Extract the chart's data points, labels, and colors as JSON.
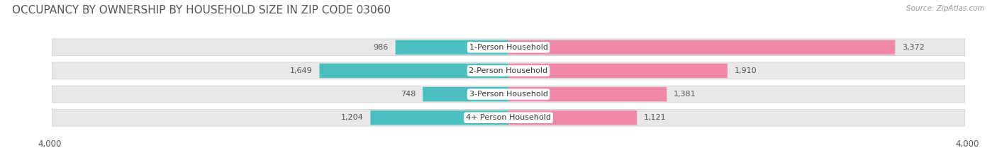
{
  "title": "OCCUPANCY BY OWNERSHIP BY HOUSEHOLD SIZE IN ZIP CODE 03060",
  "source": "Source: ZipAtlas.com",
  "categories": [
    "1-Person Household",
    "2-Person Household",
    "3-Person Household",
    "4+ Person Household"
  ],
  "owner_values": [
    986,
    1649,
    748,
    1204
  ],
  "renter_values": [
    3372,
    1910,
    1381,
    1121
  ],
  "owner_color": "#4BBFBF",
  "renter_color": "#F088A8",
  "owner_color_light": "#A8DEDE",
  "renter_color_light": "#F8C0D4",
  "axis_max": 4000,
  "bg_color": "#ffffff",
  "row_bg_color": "#e8e8e8",
  "title_fontsize": 11,
  "label_fontsize": 8,
  "value_fontsize": 8,
  "tick_fontsize": 8.5,
  "source_fontsize": 7.5
}
